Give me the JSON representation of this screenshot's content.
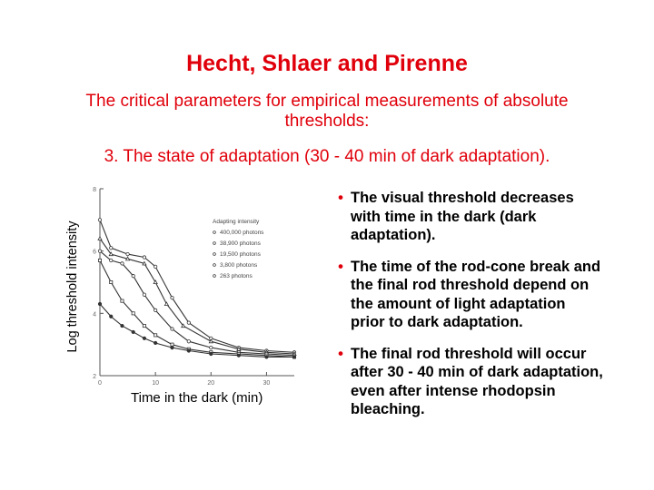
{
  "slide": {
    "title": "Hecht, Shlaer and Pirenne",
    "subtitle": "The critical parameters for empirical measurements of absolute thresholds:",
    "point": "3. The state of adaptation (30 - 40 min of dark adaptation).",
    "bullets": [
      "The visual threshold decreases with time in the dark (dark adaptation).",
      "The time of the rod-cone break and the final rod threshold depend on the amount of light adaptation prior to dark adaptation.",
      "The final rod threshold will occur after 30 - 40 min of dark adaptation, even after intense rhodopsin bleaching."
    ]
  },
  "chart_data": {
    "type": "line",
    "xlabel": "Time in the dark (min)",
    "ylabel": "Log threshold intensity",
    "xlim": [
      0,
      35
    ],
    "ylim": [
      2,
      8
    ],
    "x_ticks": [
      "0",
      "10",
      "20",
      "30"
    ],
    "y_ticks": [
      "2",
      "4",
      "6",
      "8"
    ],
    "legend_title": "Adapting intensity",
    "legend_position": "top-right",
    "series": [
      {
        "name": "400,000 photons",
        "x": [
          0,
          2,
          5,
          8,
          10,
          13,
          16,
          20,
          25,
          30,
          35
        ],
        "y": [
          7.0,
          6.1,
          5.9,
          5.8,
          5.5,
          4.5,
          3.7,
          3.2,
          2.9,
          2.8,
          2.75
        ]
      },
      {
        "name": "38,900 photons",
        "x": [
          0,
          2,
          5,
          8,
          10,
          12,
          15,
          20,
          25,
          30,
          35
        ],
        "y": [
          6.4,
          5.9,
          5.75,
          5.6,
          5.0,
          4.3,
          3.6,
          3.1,
          2.85,
          2.75,
          2.7
        ]
      },
      {
        "name": "19,500 photons",
        "x": [
          0,
          2,
          4,
          6,
          8,
          10,
          13,
          16,
          20,
          25,
          30,
          35
        ],
        "y": [
          6.0,
          5.7,
          5.6,
          5.2,
          4.6,
          4.1,
          3.5,
          3.1,
          2.9,
          2.75,
          2.7,
          2.65
        ]
      },
      {
        "name": "3,800 photons",
        "x": [
          0,
          2,
          4,
          6,
          8,
          10,
          13,
          16,
          20,
          25,
          30,
          35
        ],
        "y": [
          5.7,
          5.0,
          4.4,
          4.0,
          3.6,
          3.3,
          3.0,
          2.85,
          2.75,
          2.7,
          2.65,
          2.6
        ]
      },
      {
        "name": "263 photons",
        "x": [
          0,
          2,
          4,
          6,
          8,
          10,
          13,
          16,
          20,
          25,
          30,
          35
        ],
        "y": [
          4.3,
          3.9,
          3.6,
          3.4,
          3.2,
          3.05,
          2.9,
          2.8,
          2.7,
          2.65,
          2.6,
          2.6
        ]
      }
    ]
  }
}
